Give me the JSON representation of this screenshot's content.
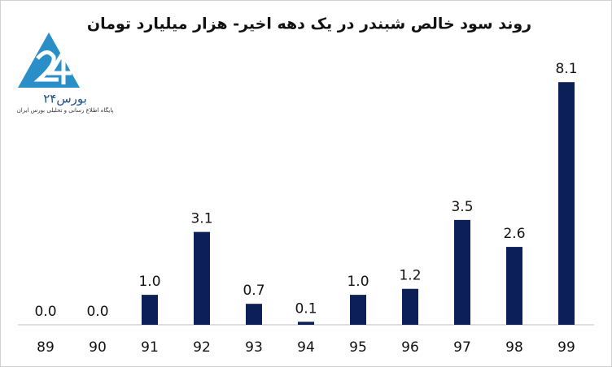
{
  "chart_data": {
    "type": "bar",
    "title": "روند سود خالص شبندر در یک دهه اخیر- هزار میلیارد تومان",
    "categories": [
      "89",
      "90",
      "91",
      "92",
      "93",
      "94",
      "95",
      "96",
      "97",
      "98",
      "99"
    ],
    "values": [
      0.0,
      0.0,
      1.0,
      3.1,
      0.7,
      0.1,
      1.0,
      1.2,
      3.5,
      2.6,
      8.1
    ],
    "value_labels": [
      "0.0",
      "0.0",
      "1.0",
      "3.1",
      "0.7",
      "0.1",
      "1.0",
      "1.2",
      "3.5",
      "2.6",
      "8.1"
    ],
    "color": "#0d1f57",
    "ylim": [
      0,
      9
    ]
  },
  "logo": {
    "name": "بورس۲۴",
    "tagline": "پایگاه اطلاع رسانی و تحلیلی بورس ایران"
  }
}
